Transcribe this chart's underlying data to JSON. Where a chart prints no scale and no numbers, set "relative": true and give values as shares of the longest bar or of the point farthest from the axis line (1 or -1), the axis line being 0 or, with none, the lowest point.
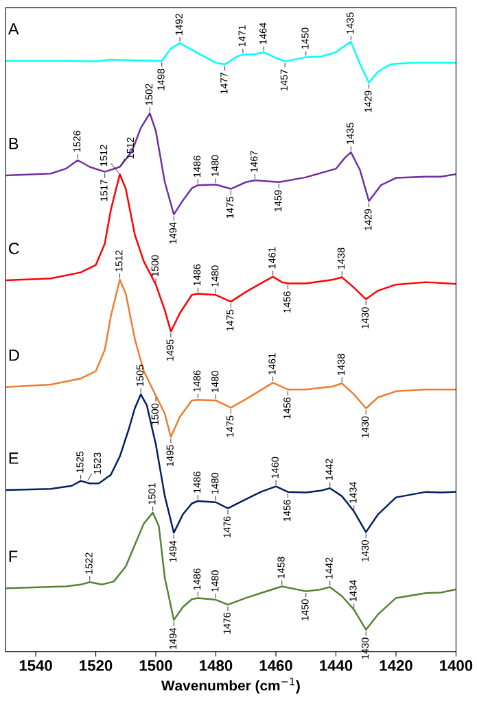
{
  "chart_data": {
    "type": "line",
    "relative": true,
    "xlabel": "Wavenumber (cm$^{−1}$)",
    "xlim": [
      1550,
      1400
    ],
    "xticks": [
      1540,
      1520,
      1500,
      1480,
      1460,
      1440,
      1420,
      1400
    ],
    "grid": false,
    "legend": false,
    "tick_labels": "x",
    "marker": "none",
    "line_style": "solid",
    "series": [
      {
        "name": "A",
        "color": "#00ffff",
        "x": [
          1550,
          1530,
          1520,
          1515,
          1510,
          1498,
          1495,
          1492,
          1489,
          1485,
          1480,
          1477,
          1473,
          1471,
          1467,
          1464,
          1460,
          1457,
          1450,
          1445,
          1440,
          1437,
          1435,
          1432,
          1429,
          1426,
          1422,
          1415,
          1400
        ],
        "values": [
          0.969,
          0.969,
          0.968,
          0.971,
          0.97,
          0.969,
          0.989,
          0.998,
          0.99,
          0.979,
          0.966,
          0.963,
          0.976,
          0.979,
          0.98,
          0.983,
          0.974,
          0.968,
          0.975,
          0.976,
          0.983,
          0.994,
          1.0,
          0.964,
          0.933,
          0.951,
          0.963,
          0.966,
          0.966
        ]
      },
      {
        "name": "B",
        "color": "#7030a0",
        "x": [
          1550,
          1535,
          1530,
          1526,
          1522,
          1517,
          1512,
          1508,
          1505,
          1502,
          1500,
          1497,
          1494,
          1491,
          1488,
          1486,
          1480,
          1475,
          1470,
          1467,
          1459,
          1450,
          1440,
          1437,
          1435,
          1432,
          1429,
          1425,
          1420,
          1410,
          1405,
          1400
        ],
        "values": [
          0.781,
          0.784,
          0.792,
          0.806,
          0.795,
          0.787,
          0.795,
          0.82,
          0.859,
          0.883,
          0.854,
          0.77,
          0.717,
          0.74,
          0.76,
          0.765,
          0.766,
          0.759,
          0.77,
          0.773,
          0.77,
          0.778,
          0.792,
          0.81,
          0.819,
          0.79,
          0.739,
          0.765,
          0.777,
          0.779,
          0.779,
          0.783
        ]
      },
      {
        "name": "C",
        "color": "#ff0000",
        "x": [
          1550,
          1535,
          1525,
          1520,
          1517,
          1515,
          1512,
          1510,
          1507,
          1504,
          1500,
          1497,
          1495,
          1492,
          1488,
          1486,
          1480,
          1475,
          1470,
          1465,
          1461,
          1458,
          1456,
          1450,
          1441,
          1438,
          1434,
          1430,
          1426,
          1420,
          1410,
          1400
        ],
        "values": [
          0.609,
          0.612,
          0.622,
          0.634,
          0.669,
          0.724,
          0.783,
          0.759,
          0.684,
          0.64,
          0.602,
          0.56,
          0.525,
          0.555,
          0.585,
          0.587,
          0.585,
          0.574,
          0.59,
          0.604,
          0.615,
          0.606,
          0.604,
          0.604,
          0.61,
          0.614,
          0.597,
          0.578,
          0.592,
          0.602,
          0.606,
          0.603
        ]
      },
      {
        "name": "D",
        "color": "#ed7d31",
        "x": [
          1550,
          1535,
          1525,
          1520,
          1517,
          1515,
          1512,
          1510,
          1507,
          1504,
          1500,
          1497,
          1495,
          1492,
          1488,
          1486,
          1480,
          1475,
          1470,
          1465,
          1461,
          1456,
          1450,
          1441,
          1438,
          1434,
          1430,
          1426,
          1420,
          1410,
          1400
        ],
        "values": [
          0.434,
          0.438,
          0.448,
          0.46,
          0.495,
          0.55,
          0.61,
          0.587,
          0.513,
          0.46,
          0.42,
          0.39,
          0.352,
          0.385,
          0.412,
          0.413,
          0.412,
          0.4,
          0.414,
          0.429,
          0.441,
          0.43,
          0.43,
          0.435,
          0.44,
          0.422,
          0.399,
          0.417,
          0.427,
          0.43,
          0.43
        ]
      },
      {
        "name": "E",
        "color": "#002060",
        "x": [
          1550,
          1535,
          1528,
          1525,
          1522,
          1519,
          1515,
          1512,
          1509,
          1507,
          1505,
          1503,
          1500,
          1497,
          1494,
          1491,
          1488,
          1486,
          1480,
          1476,
          1470,
          1465,
          1460,
          1456,
          1450,
          1445,
          1442,
          1438,
          1434,
          1430,
          1426,
          1420,
          1410,
          1405,
          1400
        ],
        "values": [
          0.265,
          0.267,
          0.272,
          0.28,
          0.276,
          0.276,
          0.29,
          0.32,
          0.365,
          0.399,
          0.422,
          0.404,
          0.34,
          0.255,
          0.195,
          0.225,
          0.243,
          0.247,
          0.245,
          0.235,
          0.25,
          0.262,
          0.271,
          0.262,
          0.261,
          0.264,
          0.268,
          0.255,
          0.23,
          0.196,
          0.225,
          0.253,
          0.262,
          0.261,
          0.262
        ]
      },
      {
        "name": "F",
        "color": "#548235",
        "x": [
          1550,
          1530,
          1525,
          1522,
          1518,
          1514,
          1510,
          1507,
          1504,
          1501,
          1499,
          1497,
          1494,
          1491,
          1488,
          1486,
          1480,
          1476,
          1470,
          1465,
          1458,
          1450,
          1445,
          1442,
          1438,
          1434,
          1430,
          1426,
          1420,
          1410,
          1405,
          1400
        ],
        "values": [
          0.104,
          0.107,
          0.11,
          0.114,
          0.11,
          0.115,
          0.14,
          0.175,
          0.21,
          0.228,
          0.206,
          0.121,
          0.052,
          0.073,
          0.086,
          0.088,
          0.085,
          0.077,
          0.088,
          0.096,
          0.107,
          0.099,
          0.102,
          0.106,
          0.091,
          0.069,
          0.036,
          0.061,
          0.088,
          0.096,
          0.097,
          0.102
        ]
      }
    ],
    "annotations": [
      {
        "text": "1492",
        "x": 1492,
        "y": 0.998
      },
      {
        "text": "1498",
        "x": 1498,
        "y": 0.969
      },
      {
        "text": "1471",
        "x": 1471,
        "y": 0.979
      },
      {
        "text": "1477",
        "x": 1477,
        "y": 0.963
      },
      {
        "text": "1464",
        "x": 1464,
        "y": 0.983
      },
      {
        "text": "1457",
        "x": 1457,
        "y": 0.968
      },
      {
        "text": "1450",
        "x": 1450,
        "y": 0.975
      },
      {
        "text": "1435",
        "x": 1435,
        "y": 1.0
      },
      {
        "text": "1429",
        "x": 1429,
        "y": 0.933
      },
      {
        "text": "1526",
        "x": 1526,
        "y": 0.806
      },
      {
        "text": "1517",
        "x": 1517,
        "y": 0.787
      },
      {
        "text": "1512",
        "x": 1512,
        "y": 0.795
      },
      {
        "text": "1502",
        "x": 1502,
        "y": 0.883
      },
      {
        "text": "1494",
        "x": 1494,
        "y": 0.717
      },
      {
        "text": "1486",
        "x": 1486,
        "y": 0.765
      },
      {
        "text": "1480",
        "x": 1480,
        "y": 0.766
      },
      {
        "text": "1475",
        "x": 1475,
        "y": 0.759
      },
      {
        "text": "1467",
        "x": 1467,
        "y": 0.773
      },
      {
        "text": "1459",
        "x": 1459,
        "y": 0.77
      },
      {
        "text": "1435",
        "x": 1435,
        "y": 0.819
      },
      {
        "text": "1429",
        "x": 1429,
        "y": 0.739
      },
      {
        "text": "1512",
        "x": 1512,
        "y": 0.783
      },
      {
        "text": "1500",
        "x": 1500,
        "y": 0.602
      },
      {
        "text": "1495",
        "x": 1495,
        "y": 0.525
      },
      {
        "text": "1486",
        "x": 1486,
        "y": 0.587
      },
      {
        "text": "1480",
        "x": 1480,
        "y": 0.585
      },
      {
        "text": "1475",
        "x": 1475,
        "y": 0.574
      },
      {
        "text": "1461",
        "x": 1461,
        "y": 0.615
      },
      {
        "text": "1456",
        "x": 1456,
        "y": 0.604
      },
      {
        "text": "1438",
        "x": 1438,
        "y": 0.614
      },
      {
        "text": "1430",
        "x": 1430,
        "y": 0.578
      },
      {
        "text": "1512",
        "x": 1512,
        "y": 0.61
      },
      {
        "text": "1500",
        "x": 1500,
        "y": 0.42
      },
      {
        "text": "1505",
        "x": 1505,
        "y": 0.422
      },
      {
        "text": "1495",
        "x": 1495,
        "y": 0.352
      },
      {
        "text": "1486",
        "x": 1486,
        "y": 0.413
      },
      {
        "text": "1480",
        "x": 1480,
        "y": 0.412
      },
      {
        "text": "1475",
        "x": 1475,
        "y": 0.4
      },
      {
        "text": "1461",
        "x": 1461,
        "y": 0.441
      },
      {
        "text": "1456",
        "x": 1456,
        "y": 0.43
      },
      {
        "text": "1438",
        "x": 1438,
        "y": 0.44
      },
      {
        "text": "1430",
        "x": 1430,
        "y": 0.399
      },
      {
        "text": "1525",
        "x": 1525,
        "y": 0.28
      },
      {
        "text": "1523",
        "x": 1523,
        "y": 0.278
      },
      {
        "text": "1494",
        "x": 1494,
        "y": 0.195
      },
      {
        "text": "1486",
        "x": 1486,
        "y": 0.247
      },
      {
        "text": "1480",
        "x": 1480,
        "y": 0.245
      },
      {
        "text": "1476",
        "x": 1476,
        "y": 0.235
      },
      {
        "text": "1460",
        "x": 1460,
        "y": 0.271
      },
      {
        "text": "1456",
        "x": 1456,
        "y": 0.262
      },
      {
        "text": "1442",
        "x": 1442,
        "y": 0.268
      },
      {
        "text": "1434",
        "x": 1434,
        "y": 0.23
      },
      {
        "text": "1430",
        "x": 1430,
        "y": 0.196
      },
      {
        "text": "1522",
        "x": 1522,
        "y": 0.114
      },
      {
        "text": "1501",
        "x": 1501,
        "y": 0.228
      },
      {
        "text": "1494",
        "x": 1494,
        "y": 0.052
      },
      {
        "text": "1486",
        "x": 1486,
        "y": 0.088
      },
      {
        "text": "1480",
        "x": 1480,
        "y": 0.085
      },
      {
        "text": "1476",
        "x": 1476,
        "y": 0.077
      },
      {
        "text": "1458",
        "x": 1458,
        "y": 0.107
      },
      {
        "text": "1450",
        "x": 1450,
        "y": 0.099
      },
      {
        "text": "1442",
        "x": 1442,
        "y": 0.106
      },
      {
        "text": "1434",
        "x": 1434,
        "y": 0.069
      },
      {
        "text": "1430",
        "x": 1430,
        "y": 0.036
      }
    ]
  }
}
